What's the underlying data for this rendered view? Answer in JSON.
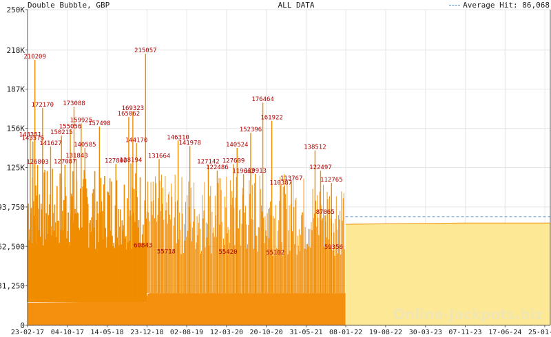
{
  "header": {
    "left_title": "Double Bubble, GBP",
    "center_title": "ALL DATA",
    "legend_label": "Average Hit: 86,068"
  },
  "watermark": "Online-Jackpots.biz",
  "colors": {
    "line": "#f08c00",
    "history_fill": "#f5900f",
    "future_fill": "#fde995",
    "average": "#4a86b8",
    "label": "#b00000",
    "grid": "#e6e6e6",
    "axis": "#555555",
    "watermark": "#f1e6b0"
  },
  "chart_data": {
    "type": "area",
    "title": "ALL DATA",
    "ylim": [
      0,
      250000
    ],
    "x_start": "2017-02-23",
    "x_end": "2025-02-25",
    "y_ticks": [
      0,
      31250,
      62500,
      93750,
      125000,
      156000,
      187000,
      218000,
      250000
    ],
    "y_tick_labels": [
      "0",
      "31,250",
      "62,500",
      "93,750",
      "125K",
      "156K",
      "187K",
      "218K",
      "250K"
    ],
    "x_ticks": [
      "2017-02-23",
      "2017-10-04",
      "2018-05-14",
      "2018-12-23",
      "2019-08-02",
      "2020-03-12",
      "2020-10-20",
      "2021-05-31",
      "2022-01-08",
      "2022-08-19",
      "2023-03-30",
      "2023-11-07",
      "2024-06-17",
      "2025-01-25"
    ],
    "x_tick_labels": [
      "23-02-17",
      "04-10-17",
      "14-05-18",
      "23-12-18",
      "02-08-19",
      "12-03-20",
      "20-10-20",
      "31-05-21",
      "08-01-22",
      "19-08-22",
      "30-03-23",
      "07-11-23",
      "17-06-24",
      "25-01-25"
    ],
    "average_hit": 86068,
    "history_end": "2022-01-06",
    "peaks": [
      {
        "date": "2017-04-05",
        "value": 210209
      },
      {
        "date": "2017-05-18",
        "value": 172170
      },
      {
        "date": "2017-03-10",
        "value": 148351
      },
      {
        "date": "2017-03-25",
        "value": 145576
      },
      {
        "date": "2017-07-02",
        "value": 141627
      },
      {
        "date": "2017-09-01",
        "value": 150215
      },
      {
        "date": "2017-11-10",
        "value": 173088
      },
      {
        "date": "2017-10-20",
        "value": 155056
      },
      {
        "date": "2017-12-20",
        "value": 159925
      },
      {
        "date": "2017-11-25",
        "value": 131843
      },
      {
        "date": "2018-01-10",
        "value": 140585
      },
      {
        "date": "2018-04-01",
        "value": 157498
      },
      {
        "date": "2017-09-20",
        "value": 127087
      },
      {
        "date": "2017-04-20",
        "value": 126803
      },
      {
        "date": "2018-07-02",
        "value": 127800
      },
      {
        "date": "2018-09-12",
        "value": 165062
      },
      {
        "date": "2018-10-05",
        "value": 169323
      },
      {
        "date": "2018-10-25",
        "value": 144170
      },
      {
        "date": "2018-09-24",
        "value": 128194
      },
      {
        "date": "2018-12-15",
        "value": 215057
      },
      {
        "date": "2019-03-01",
        "value": 131664
      },
      {
        "date": "2019-06-15",
        "value": 146310
      },
      {
        "date": "2019-08-20",
        "value": 141978
      },
      {
        "date": "2019-12-01",
        "value": 127142
      },
      {
        "date": "2020-01-20",
        "value": 122486
      },
      {
        "date": "2020-04-20",
        "value": 127609
      },
      {
        "date": "2020-05-10",
        "value": 140524
      },
      {
        "date": "2020-07-25",
        "value": 152396
      },
      {
        "date": "2020-10-01",
        "value": 176464
      },
      {
        "date": "2020-11-20",
        "value": 161922
      },
      {
        "date": "2020-08-20",
        "value": 119913
      },
      {
        "date": "2020-06-15",
        "value": 119662
      },
      {
        "date": "2021-01-10",
        "value": 110387
      },
      {
        "date": "2021-03-10",
        "value": 113767
      },
      {
        "date": "2021-07-20",
        "value": 138512
      },
      {
        "date": "2021-08-20",
        "value": 122497
      },
      {
        "date": "2021-10-20",
        "value": 112765
      },
      {
        "date": "2021-09-15",
        "value": 87065
      },
      {
        "date": "2021-11-01",
        "value": 59356
      },
      {
        "date": "2020-12-10",
        "value": 55102
      },
      {
        "date": "2020-03-20",
        "value": 55420
      },
      {
        "date": "2019-04-10",
        "value": 55718
      },
      {
        "date": "2018-12-01",
        "value": 60843
      }
    ],
    "series": [
      {
        "dates": [
          "2017-02-23",
          "2018-10-10",
          "2018-10-12",
          "2018-12-10",
          "2018-12-12",
          "2018-12-28",
          "2019-01-10",
          "2019-06-01",
          "2020-01-01",
          "2020-06-01",
          "2021-01-01",
          "2021-06-01",
          "2022-01-06"
        ],
        "values": [
          18000,
          19000,
          22000,
          20000,
          18000,
          25000,
          25500,
          25500,
          25500,
          25500,
          25500,
          25500,
          25500
        ]
      },
      {
        "dates": [
          "2022-01-08",
          "2023-11-07",
          "2025-02-25"
        ],
        "values": [
          80000,
          81000,
          81000
        ]
      }
    ]
  }
}
